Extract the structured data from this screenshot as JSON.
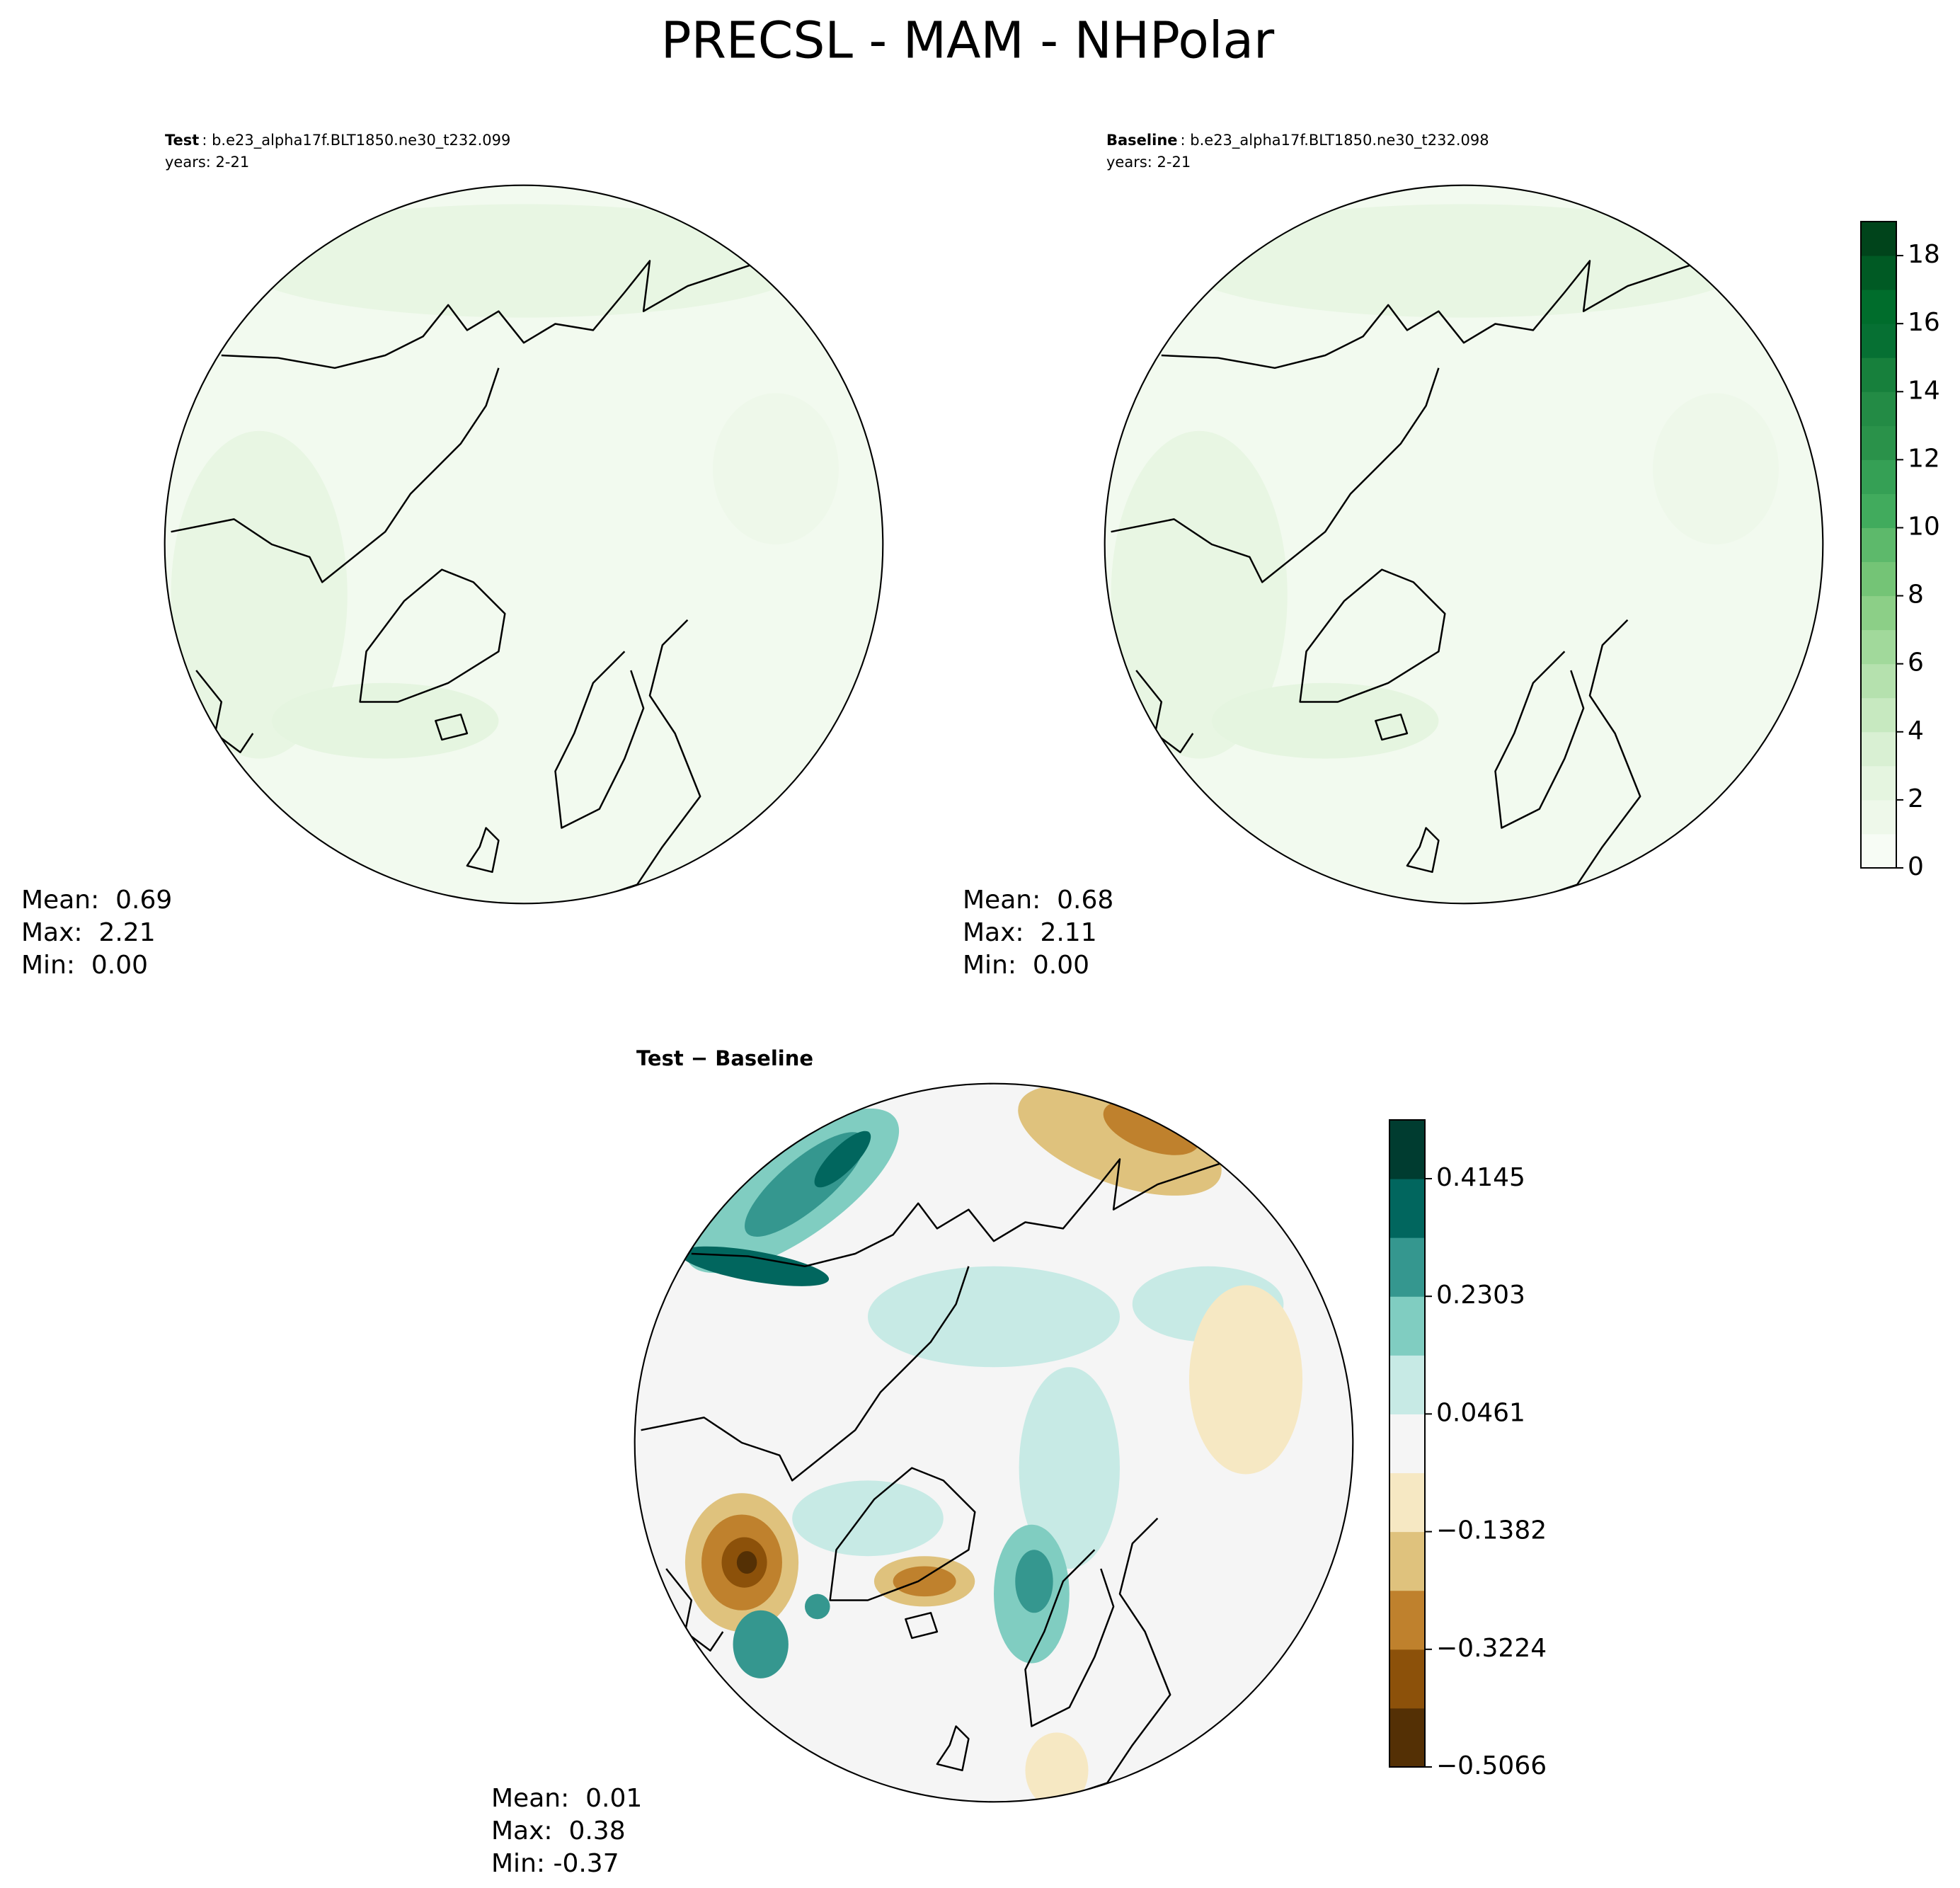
{
  "title": "PRECSL - MAM - NHPolar",
  "chart_data": [
    {
      "type": "polar-map",
      "label": "Test",
      "case": ": b.e23_alpha17f.BLT1850.ne30_t232.099",
      "years": "years: 2-21",
      "stats": [
        "Mean:  0.69",
        "Max:  2.21",
        "Min:  0.00"
      ]
    },
    {
      "type": "polar-map",
      "label": "Baseline",
      "case": ": b.e23_alpha17f.BLT1850.ne30_t232.098",
      "years": "years: 2-21",
      "stats": [
        "Mean:  0.68",
        "Max:  2.11",
        "Min:  0.00"
      ],
      "colorbar": {
        "ylim": [
          0,
          19
        ],
        "yticks": [
          0,
          2,
          4,
          6,
          8,
          10,
          12,
          14,
          16,
          18
        ],
        "colors": [
          "#f7fcf5",
          "#eef8ea",
          "#e5f5e0",
          "#d9f0d3",
          "#c7e9c0",
          "#b5e1ae",
          "#a1d99b",
          "#8ccf87",
          "#74c476",
          "#5db96b",
          "#41ab5d",
          "#35a055",
          "#2a924a",
          "#238b45",
          "#17803c",
          "#067033",
          "#006d2c",
          "#005a24",
          "#00441b"
        ]
      }
    },
    {
      "type": "polar-map",
      "title": "Test − Baseline",
      "stats": [
        "Mean:  0.01",
        "Max:  0.38",
        "Min: -0.37"
      ],
      "colorbar": {
        "ylim": [
          -0.5066,
          0.5065
        ],
        "yticks": [
          {
            "value": -0.5066,
            "label": "−0.5066"
          },
          {
            "value": -0.3224,
            "label": "−0.3224"
          },
          {
            "value": -0.1382,
            "label": "−0.1382"
          },
          0.0461,
          0.2303,
          0.4145
        ],
        "colors": [
          "#543005",
          "#8c510a",
          "#bf812d",
          "#dfc27d",
          "#f6e8c3",
          "#f5f5f5",
          "#c7eae5",
          "#80cdc1",
          "#35978f",
          "#01665e",
          "#003c30"
        ]
      }
    }
  ]
}
